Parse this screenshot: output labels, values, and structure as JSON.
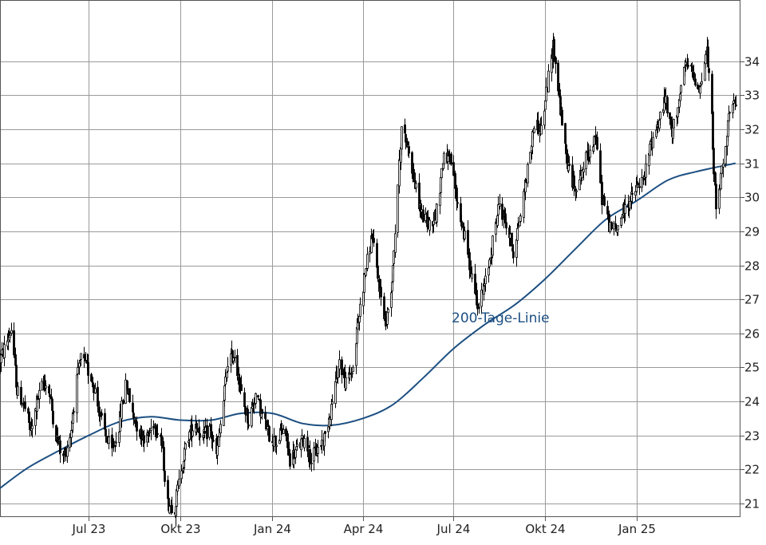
{
  "chart_data": {
    "type": "candlestick",
    "title": "",
    "xlabel": "",
    "ylabel": "",
    "ylim": [
      20.6,
      35.8
    ],
    "y_ticks": [
      21,
      22,
      23,
      24,
      25,
      26,
      27,
      28,
      29,
      30,
      31,
      32,
      33,
      34
    ],
    "y_tick_labels": [
      "21",
      "22",
      "23",
      "24",
      "25",
      "26",
      "27",
      "28",
      "29",
      "30",
      "31",
      "32",
      "33",
      "34"
    ],
    "x_ticks": [
      {
        "date": "2023-07-01",
        "label": "Jul 23"
      },
      {
        "date": "2023-10-01",
        "label": "Okt 23"
      },
      {
        "date": "2024-01-01",
        "label": "Jan 24"
      },
      {
        "date": "2024-04-01",
        "label": "Apr 24"
      },
      {
        "date": "2024-07-01",
        "label": "Jul 24"
      },
      {
        "date": "2024-10-01",
        "label": "Okt 24"
      },
      {
        "date": "2025-01-01",
        "label": "Jan 25"
      }
    ],
    "xlim": [
      "2023-04-03",
      "2025-04-15"
    ],
    "grid": true,
    "price_series": {
      "name": "",
      "color": "#000000",
      "points": [
        [
          "2023-04-03",
          25.2
        ],
        [
          "2023-04-10",
          25.8
        ],
        [
          "2023-04-14",
          26.1
        ],
        [
          "2023-04-20",
          24.3
        ],
        [
          "2023-04-27",
          23.9
        ],
        [
          "2023-05-04",
          23.1
        ],
        [
          "2023-05-10",
          24.0
        ],
        [
          "2023-05-17",
          24.6
        ],
        [
          "2023-05-22",
          24.3
        ],
        [
          "2023-05-29",
          23.0
        ],
        [
          "2023-06-05",
          22.3
        ],
        [
          "2023-06-12",
          23.0
        ],
        [
          "2023-06-19",
          24.6
        ],
        [
          "2023-06-23",
          25.3
        ],
        [
          "2023-06-30",
          24.9
        ],
        [
          "2023-07-05",
          24.6
        ],
        [
          "2023-07-12",
          23.6
        ],
        [
          "2023-07-19",
          22.9
        ],
        [
          "2023-07-24",
          22.5
        ],
        [
          "2023-07-31",
          23.3
        ],
        [
          "2023-08-07",
          24.6
        ],
        [
          "2023-08-14",
          23.6
        ],
        [
          "2023-08-21",
          23.1
        ],
        [
          "2023-08-28",
          22.9
        ],
        [
          "2023-09-04",
          23.4
        ],
        [
          "2023-09-11",
          23.0
        ],
        [
          "2023-09-18",
          21.0
        ],
        [
          "2023-09-25",
          20.9
        ],
        [
          "2023-10-02",
          22.1
        ],
        [
          "2023-10-09",
          23.0
        ],
        [
          "2023-10-16",
          23.4
        ],
        [
          "2023-10-23",
          22.9
        ],
        [
          "2023-10-30",
          23.2
        ],
        [
          "2023-11-06",
          22.4
        ],
        [
          "2023-11-13",
          24.0
        ],
        [
          "2023-11-17",
          25.2
        ],
        [
          "2023-11-24",
          25.4
        ],
        [
          "2023-12-01",
          24.2
        ],
        [
          "2023-12-08",
          23.4
        ],
        [
          "2023-12-15",
          24.2
        ],
        [
          "2023-12-22",
          23.6
        ],
        [
          "2023-12-29",
          23.0
        ],
        [
          "2024-01-05",
          22.8
        ],
        [
          "2024-01-12",
          23.2
        ],
        [
          "2024-01-19",
          22.3
        ],
        [
          "2024-01-26",
          22.6
        ],
        [
          "2024-02-02",
          22.9
        ],
        [
          "2024-02-09",
          22.3
        ],
        [
          "2024-02-16",
          22.6
        ],
        [
          "2024-02-23",
          23.0
        ],
        [
          "2024-03-01",
          24.0
        ],
        [
          "2024-03-08",
          25.2
        ],
        [
          "2024-03-15",
          24.5
        ],
        [
          "2024-03-22",
          25.0
        ],
        [
          "2024-03-29",
          26.8
        ],
        [
          "2024-04-03",
          27.8
        ],
        [
          "2024-04-10",
          28.9
        ],
        [
          "2024-04-17",
          27.4
        ],
        [
          "2024-04-24",
          26.3
        ],
        [
          "2024-04-30",
          27.6
        ],
        [
          "2024-05-07",
          30.9
        ],
        [
          "2024-05-10",
          32.0
        ],
        [
          "2024-05-17",
          31.4
        ],
        [
          "2024-05-24",
          30.2
        ],
        [
          "2024-05-31",
          29.4
        ],
        [
          "2024-06-07",
          29.2
        ],
        [
          "2024-06-14",
          29.6
        ],
        [
          "2024-06-21",
          31.3
        ],
        [
          "2024-06-28",
          31.0
        ],
        [
          "2024-07-05",
          29.8
        ],
        [
          "2024-07-12",
          28.8
        ],
        [
          "2024-07-19",
          27.7
        ],
        [
          "2024-07-26",
          26.8
        ],
        [
          "2024-08-02",
          27.5
        ],
        [
          "2024-08-09",
          28.7
        ],
        [
          "2024-08-16",
          29.8
        ],
        [
          "2024-08-23",
          29.2
        ],
        [
          "2024-08-30",
          28.4
        ],
        [
          "2024-09-06",
          29.5
        ],
        [
          "2024-09-13",
          30.8
        ],
        [
          "2024-09-20",
          32.2
        ],
        [
          "2024-09-27",
          32.0
        ],
        [
          "2024-10-04",
          33.5
        ],
        [
          "2024-10-09",
          34.5
        ],
        [
          "2024-10-16",
          32.6
        ],
        [
          "2024-10-23",
          31.0
        ],
        [
          "2024-10-30",
          30.3
        ],
        [
          "2024-11-06",
          30.7
        ],
        [
          "2024-11-13",
          31.3
        ],
        [
          "2024-11-20",
          31.8
        ],
        [
          "2024-11-27",
          30.0
        ],
        [
          "2024-12-04",
          29.2
        ],
        [
          "2024-12-11",
          29.0
        ],
        [
          "2024-12-18",
          29.6
        ],
        [
          "2024-12-25",
          29.9
        ],
        [
          "2025-01-01",
          30.3
        ],
        [
          "2025-01-08",
          30.5
        ],
        [
          "2025-01-15",
          31.6
        ],
        [
          "2025-01-22",
          32.2
        ],
        [
          "2025-01-29",
          32.9
        ],
        [
          "2025-02-05",
          31.8
        ],
        [
          "2025-02-12",
          32.9
        ],
        [
          "2025-02-19",
          33.9
        ],
        [
          "2025-02-26",
          33.6
        ],
        [
          "2025-03-05",
          33.2
        ],
        [
          "2025-03-12",
          34.3
        ],
        [
          "2025-03-17",
          32.3
        ],
        [
          "2025-03-21",
          29.5
        ],
        [
          "2025-03-27",
          30.8
        ],
        [
          "2025-04-03",
          32.4
        ],
        [
          "2025-04-10",
          32.7
        ]
      ]
    },
    "moving_average": {
      "name": "200-Tage-Linie",
      "color": "#1c4f82",
      "points": [
        [
          "2023-04-03",
          21.45
        ],
        [
          "2023-05-01",
          22.05
        ],
        [
          "2023-06-01",
          22.55
        ],
        [
          "2023-07-01",
          23.0
        ],
        [
          "2023-08-01",
          23.4
        ],
        [
          "2023-09-01",
          23.55
        ],
        [
          "2023-10-01",
          23.45
        ],
        [
          "2023-11-01",
          23.45
        ],
        [
          "2023-12-01",
          23.65
        ],
        [
          "2024-01-01",
          23.65
        ],
        [
          "2024-02-01",
          23.35
        ],
        [
          "2024-03-01",
          23.3
        ],
        [
          "2024-04-01",
          23.5
        ],
        [
          "2024-05-01",
          23.9
        ],
        [
          "2024-06-01",
          24.7
        ],
        [
          "2024-07-01",
          25.55
        ],
        [
          "2024-08-01",
          26.25
        ],
        [
          "2024-09-01",
          26.85
        ],
        [
          "2024-10-01",
          27.6
        ],
        [
          "2024-11-01",
          28.5
        ],
        [
          "2024-12-01",
          29.35
        ],
        [
          "2025-01-01",
          29.9
        ],
        [
          "2025-02-01",
          30.5
        ],
        [
          "2025-03-01",
          30.75
        ],
        [
          "2025-04-10",
          31.0
        ]
      ]
    }
  }
}
